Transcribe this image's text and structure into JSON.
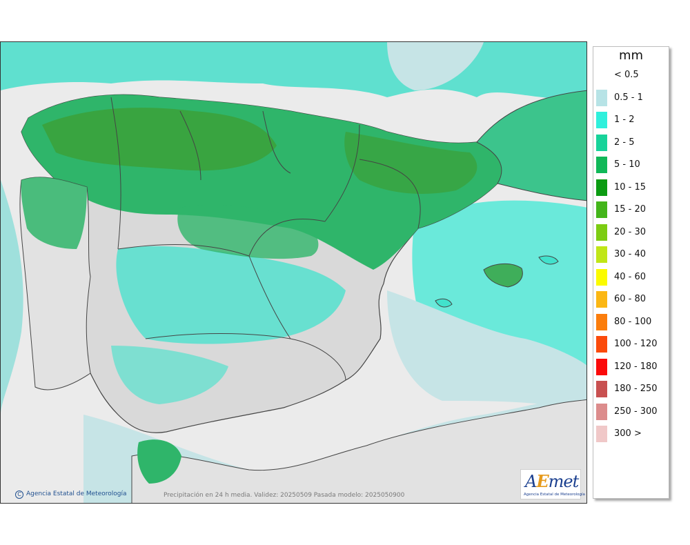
{
  "legend": {
    "unit": "mm",
    "items": [
      {
        "label": "< 0.5",
        "color": "#ffffff"
      },
      {
        "label": "0.5 - 1",
        "color": "#b7e3e6"
      },
      {
        "label": "1 - 2",
        "color": "#2ff0dc"
      },
      {
        "label": "2 - 5",
        "color": "#17d39a"
      },
      {
        "label": "5 - 10",
        "color": "#10b858"
      },
      {
        "label": "10 - 15",
        "color": "#0b9b12"
      },
      {
        "label": "15 - 20",
        "color": "#43b51a"
      },
      {
        "label": "20 - 30",
        "color": "#7ccc12"
      },
      {
        "label": "30 - 40",
        "color": "#c0e617"
      },
      {
        "label": "40 - 60",
        "color": "#fbfb00"
      },
      {
        "label": "60 - 80",
        "color": "#fbb714"
      },
      {
        "label": "80 - 100",
        "color": "#fb7d0c"
      },
      {
        "label": "100 - 120",
        "color": "#fb4a0b"
      },
      {
        "label": "120 - 180",
        "color": "#fb0a0a"
      },
      {
        "label": "180 - 250",
        "color": "#c85050"
      },
      {
        "label": "250 - 300",
        "color": "#dc8c8c"
      },
      {
        "label": "300 >",
        "color": "#f0c8c8"
      }
    ]
  },
  "credit": "Agencia Estatal de Meteorología",
  "caption": "Precipitación en 24 h media. Validez: 20250509 Pasada modelo: 2025050900",
  "logo": {
    "word_a": "A",
    "word_e": "E",
    "word_rest": "met",
    "sub": "Agencia Estatal de Meteorología"
  }
}
